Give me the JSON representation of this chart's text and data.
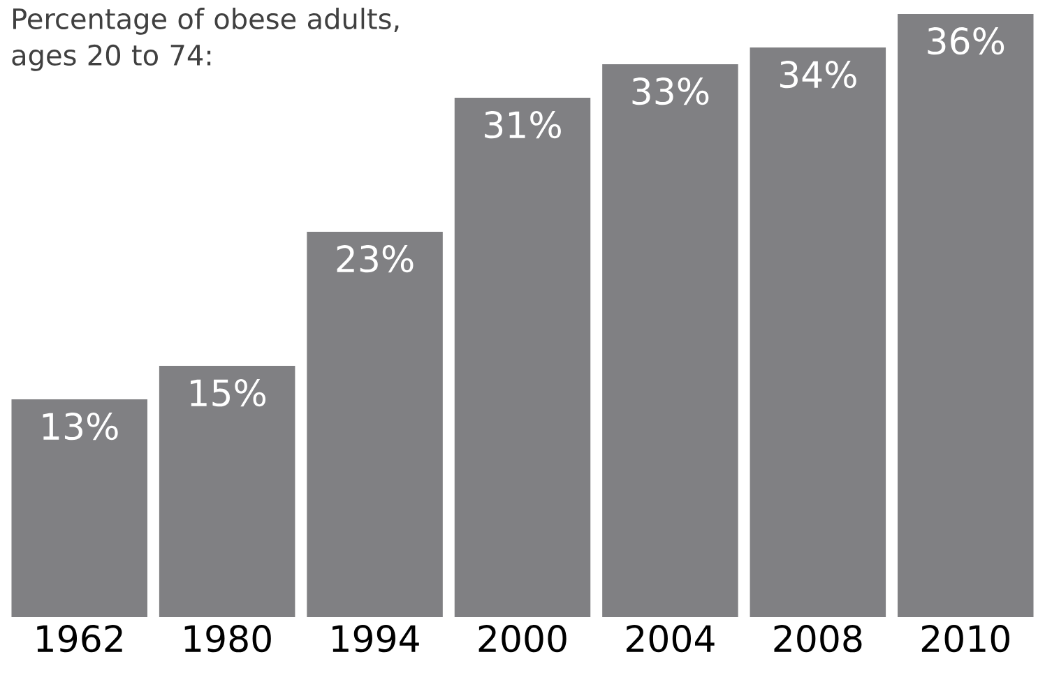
{
  "chart_data": {
    "type": "bar",
    "title": "Percentage of obese adults, ages 20 to 74:",
    "categories": [
      "1962",
      "1980",
      "1994",
      "2000",
      "2004",
      "2008",
      "2010"
    ],
    "values": [
      13,
      15,
      23,
      31,
      33,
      34,
      36
    ],
    "value_labels": [
      "13%",
      "15%",
      "23%",
      "31%",
      "33%",
      "34%",
      "36%"
    ],
    "color": "#808083"
  }
}
